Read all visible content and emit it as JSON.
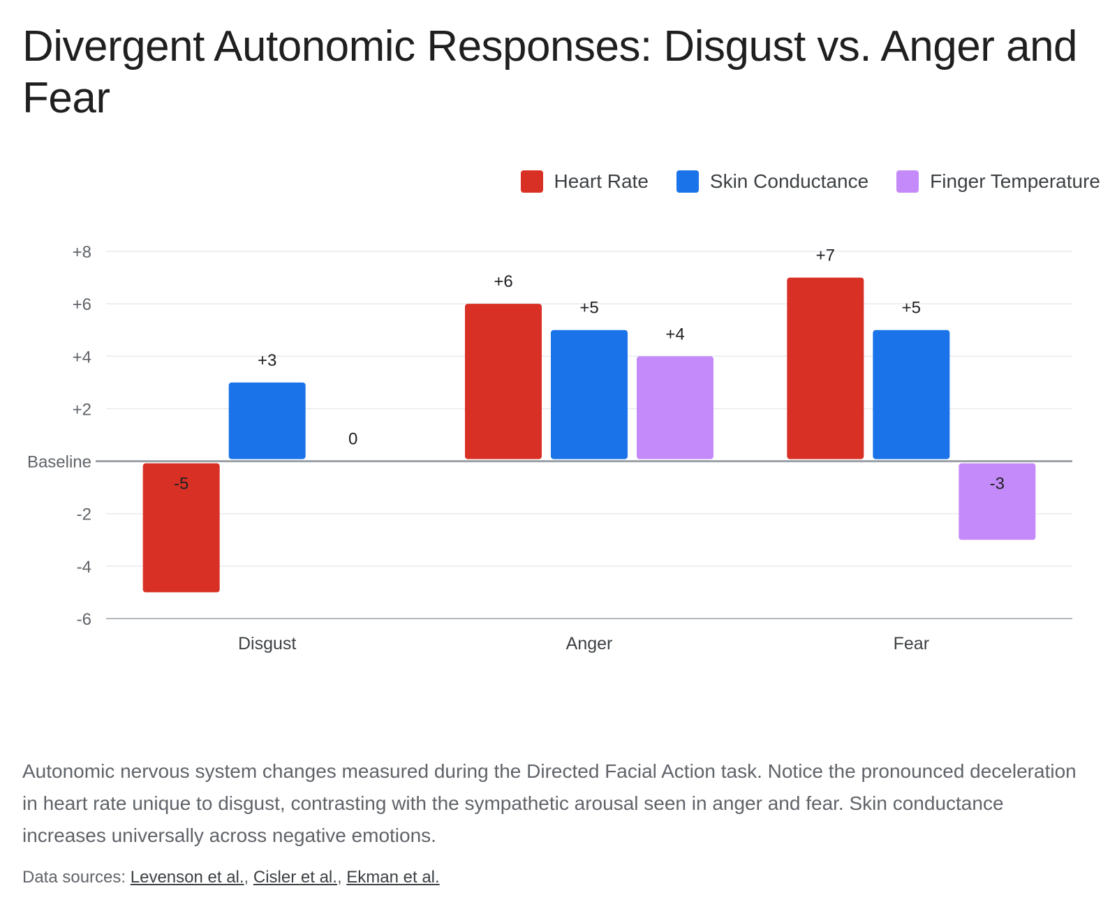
{
  "title": "Divergent Autonomic Responses: Disgust vs. Anger and Fear",
  "description": "Autonomic nervous system changes measured during the Directed Facial Action task. Notice the pronounced deceleration in heart rate unique to disgust, contrasting with the sympathetic arousal seen in anger and fear. Skin conductance increases universally across negative emotions.",
  "sources": {
    "label": "Data sources:",
    "links": [
      "Levenson et al.",
      "Cisler et al.",
      "Ekman et al."
    ],
    "separator": ","
  },
  "colors": {
    "heart_rate": "#d93025",
    "skin_conductance": "#1a73e8",
    "finger_temperature": "#c58af9",
    "grid": "#e8eaed",
    "baseline": "#9aa0a6",
    "axis_text": "#5f6368"
  },
  "chart_data": {
    "type": "bar",
    "categories": [
      "Disgust",
      "Anger",
      "Fear"
    ],
    "series": [
      {
        "name": "Heart Rate",
        "values": [
          -5,
          6,
          7
        ],
        "labels": [
          "-5",
          "+6",
          "+7"
        ]
      },
      {
        "name": "Skin Conductance",
        "values": [
          3,
          5,
          5
        ],
        "labels": [
          "+3",
          "+5",
          "+5"
        ]
      },
      {
        "name": "Finger Temperature",
        "values": [
          0,
          4,
          -3
        ],
        "labels": [
          "0",
          "+4",
          "-3"
        ]
      }
    ],
    "yticks": [
      {
        "value": 8,
        "label": "+8"
      },
      {
        "value": 6,
        "label": "+6"
      },
      {
        "value": 4,
        "label": "+4"
      },
      {
        "value": 2,
        "label": "+2"
      },
      {
        "value": 0,
        "label": "Baseline"
      },
      {
        "value": -2,
        "label": "-2"
      },
      {
        "value": -4,
        "label": "-4"
      },
      {
        "value": -6,
        "label": "-6"
      }
    ],
    "ylim": [
      -6,
      8
    ],
    "grid": true,
    "legend_position": "top-right"
  }
}
